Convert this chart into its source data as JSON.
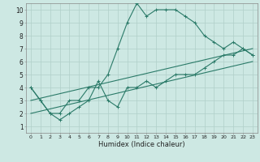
{
  "xlabel": "Humidex (Indice chaleur)",
  "bg_color": "#cde8e3",
  "grid_color": "#b0cfc9",
  "line_color": "#2a7a68",
  "xlim": [
    -0.5,
    23.5
  ],
  "ylim": [
    0.5,
    10.5
  ],
  "xticks": [
    0,
    1,
    2,
    3,
    4,
    5,
    6,
    7,
    8,
    9,
    10,
    11,
    12,
    13,
    14,
    15,
    16,
    17,
    18,
    19,
    20,
    21,
    22,
    23
  ],
  "yticks": [
    1,
    2,
    3,
    4,
    5,
    6,
    7,
    8,
    9,
    10
  ],
  "series1_x": [
    0,
    1,
    2,
    3,
    4,
    5,
    6,
    7,
    8,
    9,
    10,
    11,
    12,
    13,
    14,
    15,
    16,
    17,
    18,
    19,
    20,
    21,
    22,
    23
  ],
  "series1_y": [
    4,
    3,
    2,
    2,
    3,
    3,
    4,
    4,
    5,
    7,
    9,
    10.5,
    9.5,
    10,
    10,
    10,
    9.5,
    9,
    8,
    7.5,
    7,
    7.5,
    7,
    6.5
  ],
  "series2_x": [
    0,
    1,
    2,
    3,
    4,
    5,
    6,
    7,
    8,
    9,
    10,
    11,
    12,
    13,
    14,
    15,
    16,
    17,
    18,
    19,
    20,
    21,
    22,
    23
  ],
  "series2_y": [
    4,
    3,
    2,
    1.5,
    2,
    2.5,
    3,
    4.5,
    3,
    2.5,
    4,
    4,
    4.5,
    4,
    4.5,
    5,
    5,
    5,
    5.5,
    6,
    6.5,
    6.5,
    7,
    6.5
  ],
  "line1_x": [
    0,
    23
  ],
  "line1_y": [
    2.0,
    6.0
  ],
  "line2_x": [
    0,
    23
  ],
  "line2_y": [
    3.0,
    7.0
  ]
}
